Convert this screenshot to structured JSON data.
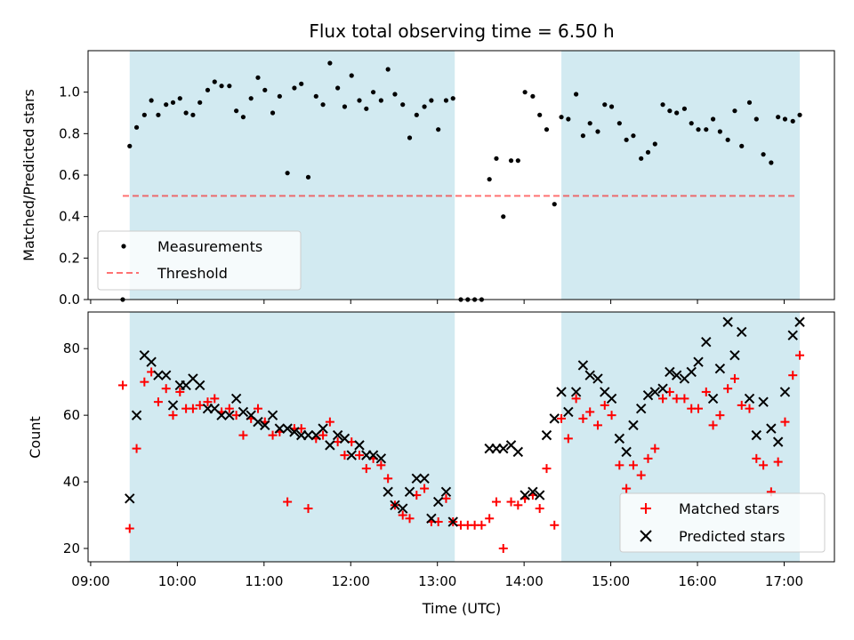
{
  "chart_data": {
    "type": "scatter",
    "title": "Flux total observing time = 6.50 h",
    "xlabel": "Time (UTC)",
    "x_unit": "hours UTC (decimal)",
    "x_ticks": [
      {
        "value": 9.0,
        "label": "09:00"
      },
      {
        "value": 10.0,
        "label": "10:00"
      },
      {
        "value": 11.0,
        "label": "11:00"
      },
      {
        "value": 12.0,
        "label": "12:00"
      },
      {
        "value": 13.0,
        "label": "13:00"
      },
      {
        "value": 14.0,
        "label": "14:00"
      },
      {
        "value": 15.0,
        "label": "15:00"
      },
      {
        "value": 16.0,
        "label": "16:00"
      },
      {
        "value": 17.0,
        "label": "17:00"
      }
    ],
    "xlim": [
      8.97,
      17.58
    ],
    "shaded_intervals": [
      [
        9.45,
        13.2
      ],
      [
        14.43,
        17.18
      ]
    ],
    "colors": {
      "shade": "#add8e6",
      "measurements": "#000000",
      "threshold": "#ff0000",
      "matched": "#ff0000",
      "predicted": "#000000"
    },
    "top_panel": {
      "ylabel": "Matched/Predicted stars",
      "ylim": [
        0.0,
        1.2
      ],
      "y_ticks": [
        0.0,
        0.2,
        0.4,
        0.6,
        0.8,
        1.0
      ],
      "y_tick_labels": [
        "0.0",
        "0.2",
        "0.4",
        "0.6",
        "0.8",
        "1.0"
      ],
      "threshold": {
        "value": 0.5,
        "x_range": [
          9.37,
          17.13
        ]
      },
      "legend": {
        "position": "lower-left",
        "entries": [
          "Measurements",
          "Threshold"
        ]
      },
      "measurements": [
        [
          9.37,
          0.0
        ],
        [
          9.45,
          0.74
        ],
        [
          9.53,
          0.83
        ],
        [
          9.62,
          0.89
        ],
        [
          9.7,
          0.96
        ],
        [
          9.78,
          0.89
        ],
        [
          9.87,
          0.94
        ],
        [
          9.95,
          0.95
        ],
        [
          10.03,
          0.97
        ],
        [
          10.1,
          0.9
        ],
        [
          10.18,
          0.89
        ],
        [
          10.26,
          0.95
        ],
        [
          10.35,
          1.01
        ],
        [
          10.43,
          1.05
        ],
        [
          10.51,
          1.03
        ],
        [
          10.6,
          1.03
        ],
        [
          10.68,
          0.91
        ],
        [
          10.76,
          0.88
        ],
        [
          10.85,
          0.97
        ],
        [
          10.93,
          1.07
        ],
        [
          11.01,
          1.01
        ],
        [
          11.1,
          0.9
        ],
        [
          11.18,
          0.98
        ],
        [
          11.27,
          0.61
        ],
        [
          11.35,
          1.02
        ],
        [
          11.43,
          1.04
        ],
        [
          11.51,
          0.59
        ],
        [
          11.6,
          0.98
        ],
        [
          11.68,
          0.94
        ],
        [
          11.76,
          1.14
        ],
        [
          11.85,
          1.02
        ],
        [
          11.93,
          0.93
        ],
        [
          12.01,
          1.08
        ],
        [
          12.1,
          0.96
        ],
        [
          12.18,
          0.92
        ],
        [
          12.26,
          1.0
        ],
        [
          12.35,
          0.96
        ],
        [
          12.43,
          1.11
        ],
        [
          12.51,
          0.99
        ],
        [
          12.6,
          0.94
        ],
        [
          12.68,
          0.78
        ],
        [
          12.76,
          0.89
        ],
        [
          12.85,
          0.93
        ],
        [
          12.93,
          0.96
        ],
        [
          13.01,
          0.82
        ],
        [
          13.1,
          0.96
        ],
        [
          13.18,
          0.97
        ],
        [
          13.27,
          0.0
        ],
        [
          13.35,
          0.0
        ],
        [
          13.43,
          0.0
        ],
        [
          13.51,
          0.0
        ],
        [
          13.6,
          0.58
        ],
        [
          13.68,
          0.68
        ],
        [
          13.76,
          0.4
        ],
        [
          13.85,
          0.67
        ],
        [
          13.93,
          0.67
        ],
        [
          14.01,
          1.0
        ],
        [
          14.1,
          0.98
        ],
        [
          14.18,
          0.89
        ],
        [
          14.26,
          0.82
        ],
        [
          14.35,
          0.46
        ],
        [
          14.43,
          0.88
        ],
        [
          14.51,
          0.87
        ],
        [
          14.6,
          0.99
        ],
        [
          14.68,
          0.79
        ],
        [
          14.76,
          0.85
        ],
        [
          14.85,
          0.81
        ],
        [
          14.93,
          0.94
        ],
        [
          15.01,
          0.93
        ],
        [
          15.1,
          0.85
        ],
        [
          15.18,
          0.77
        ],
        [
          15.26,
          0.79
        ],
        [
          15.35,
          0.68
        ],
        [
          15.43,
          0.71
        ],
        [
          15.51,
          0.75
        ],
        [
          15.6,
          0.94
        ],
        [
          15.68,
          0.91
        ],
        [
          15.76,
          0.9
        ],
        [
          15.85,
          0.92
        ],
        [
          15.93,
          0.85
        ],
        [
          16.01,
          0.82
        ],
        [
          16.1,
          0.82
        ],
        [
          16.18,
          0.87
        ],
        [
          16.26,
          0.81
        ],
        [
          16.35,
          0.77
        ],
        [
          16.43,
          0.91
        ],
        [
          16.51,
          0.74
        ],
        [
          16.6,
          0.95
        ],
        [
          16.68,
          0.87
        ],
        [
          16.76,
          0.7
        ],
        [
          16.85,
          0.66
        ],
        [
          16.93,
          0.88
        ],
        [
          17.01,
          0.87
        ],
        [
          17.1,
          0.86
        ],
        [
          17.18,
          0.89
        ]
      ]
    },
    "bottom_panel": {
      "ylabel": "Count",
      "ylim": [
        16,
        91
      ],
      "y_ticks": [
        20,
        40,
        60,
        80
      ],
      "y_tick_labels": [
        "20",
        "40",
        "60",
        "80"
      ],
      "legend": {
        "position": "lower-right",
        "entries": [
          "Matched stars",
          "Predicted stars"
        ]
      },
      "matched": [
        [
          9.37,
          69
        ],
        [
          9.45,
          26
        ],
        [
          9.53,
          50
        ],
        [
          9.62,
          70
        ],
        [
          9.7,
          73
        ],
        [
          9.78,
          64
        ],
        [
          9.87,
          68
        ],
        [
          9.95,
          60
        ],
        [
          10.03,
          67
        ],
        [
          10.1,
          62
        ],
        [
          10.18,
          62
        ],
        [
          10.26,
          63
        ],
        [
          10.35,
          64
        ],
        [
          10.43,
          65
        ],
        [
          10.51,
          61
        ],
        [
          10.6,
          62
        ],
        [
          10.68,
          60
        ],
        [
          10.76,
          54
        ],
        [
          10.85,
          59
        ],
        [
          10.93,
          62
        ],
        [
          11.01,
          58
        ],
        [
          11.1,
          54
        ],
        [
          11.18,
          55
        ],
        [
          11.27,
          34
        ],
        [
          11.35,
          56
        ],
        [
          11.43,
          56
        ],
        [
          11.51,
          32
        ],
        [
          11.6,
          53
        ],
        [
          11.68,
          54
        ],
        [
          11.76,
          58
        ],
        [
          11.85,
          52
        ],
        [
          11.93,
          48
        ],
        [
          12.01,
          52
        ],
        [
          12.1,
          48
        ],
        [
          12.18,
          44
        ],
        [
          12.26,
          47
        ],
        [
          12.35,
          45
        ],
        [
          12.43,
          41
        ],
        [
          12.51,
          33
        ],
        [
          12.6,
          30
        ],
        [
          12.68,
          29
        ],
        [
          12.76,
          36
        ],
        [
          12.85,
          38
        ],
        [
          12.93,
          28
        ],
        [
          13.01,
          28
        ],
        [
          13.1,
          35
        ],
        [
          13.18,
          28
        ],
        [
          13.27,
          27
        ],
        [
          13.35,
          27
        ],
        [
          13.43,
          27
        ],
        [
          13.51,
          27
        ],
        [
          13.6,
          29
        ],
        [
          13.68,
          34
        ],
        [
          13.76,
          20
        ],
        [
          13.85,
          34
        ],
        [
          13.93,
          33
        ],
        [
          14.01,
          35
        ],
        [
          14.1,
          36
        ],
        [
          14.18,
          32
        ],
        [
          14.26,
          44
        ],
        [
          14.35,
          27
        ],
        [
          14.43,
          59
        ],
        [
          14.51,
          53
        ],
        [
          14.6,
          65
        ],
        [
          14.68,
          59
        ],
        [
          14.76,
          61
        ],
        [
          14.85,
          57
        ],
        [
          14.93,
          63
        ],
        [
          15.01,
          60
        ],
        [
          15.1,
          45
        ],
        [
          15.18,
          38
        ],
        [
          15.26,
          45
        ],
        [
          15.35,
          42
        ],
        [
          15.43,
          47
        ],
        [
          15.51,
          50
        ],
        [
          15.6,
          65
        ],
        [
          15.68,
          67
        ],
        [
          15.76,
          65
        ],
        [
          15.85,
          65
        ],
        [
          15.93,
          62
        ],
        [
          16.01,
          62
        ],
        [
          16.1,
          67
        ],
        [
          16.18,
          57
        ],
        [
          16.26,
          60
        ],
        [
          16.35,
          68
        ],
        [
          16.43,
          71
        ],
        [
          16.51,
          63
        ],
        [
          16.6,
          62
        ],
        [
          16.68,
          47
        ],
        [
          16.76,
          45
        ],
        [
          16.85,
          37
        ],
        [
          16.93,
          46
        ],
        [
          17.01,
          58
        ],
        [
          17.1,
          72
        ],
        [
          17.18,
          78
        ]
      ],
      "predicted": [
        [
          9.45,
          35
        ],
        [
          9.53,
          60
        ],
        [
          9.62,
          78
        ],
        [
          9.7,
          76
        ],
        [
          9.78,
          72
        ],
        [
          9.87,
          72
        ],
        [
          9.95,
          63
        ],
        [
          10.03,
          69
        ],
        [
          10.1,
          69
        ],
        [
          10.18,
          71
        ],
        [
          10.26,
          69
        ],
        [
          10.35,
          62
        ],
        [
          10.43,
          62
        ],
        [
          10.51,
          60
        ],
        [
          10.6,
          60
        ],
        [
          10.68,
          65
        ],
        [
          10.76,
          61
        ],
        [
          10.85,
          60
        ],
        [
          10.93,
          58
        ],
        [
          11.01,
          57
        ],
        [
          11.1,
          60
        ],
        [
          11.18,
          56
        ],
        [
          11.27,
          56
        ],
        [
          11.35,
          55
        ],
        [
          11.43,
          54
        ],
        [
          11.51,
          54
        ],
        [
          11.6,
          54
        ],
        [
          11.68,
          56
        ],
        [
          11.76,
          51
        ],
        [
          11.85,
          54
        ],
        [
          11.93,
          53
        ],
        [
          12.01,
          48
        ],
        [
          12.1,
          51
        ],
        [
          12.18,
          48
        ],
        [
          12.26,
          48
        ],
        [
          12.35,
          47
        ],
        [
          12.43,
          37
        ],
        [
          12.51,
          33
        ],
        [
          12.6,
          32
        ],
        [
          12.68,
          37
        ],
        [
          12.76,
          41
        ],
        [
          12.85,
          41
        ],
        [
          12.93,
          29
        ],
        [
          13.01,
          34
        ],
        [
          13.1,
          37
        ],
        [
          13.18,
          28
        ],
        [
          13.6,
          50
        ],
        [
          13.68,
          50
        ],
        [
          13.76,
          50
        ],
        [
          13.85,
          51
        ],
        [
          13.93,
          49
        ],
        [
          14.01,
          36
        ],
        [
          14.1,
          37
        ],
        [
          14.18,
          36
        ],
        [
          14.26,
          54
        ],
        [
          14.35,
          59
        ],
        [
          14.43,
          67
        ],
        [
          14.51,
          61
        ],
        [
          14.6,
          67
        ],
        [
          14.68,
          75
        ],
        [
          14.76,
          72
        ],
        [
          14.85,
          71
        ],
        [
          14.93,
          67
        ],
        [
          15.01,
          65
        ],
        [
          15.1,
          53
        ],
        [
          15.18,
          49
        ],
        [
          15.26,
          57
        ],
        [
          15.35,
          62
        ],
        [
          15.43,
          66
        ],
        [
          15.51,
          67
        ],
        [
          15.6,
          68
        ],
        [
          15.68,
          73
        ],
        [
          15.76,
          72
        ],
        [
          15.85,
          71
        ],
        [
          15.93,
          73
        ],
        [
          16.01,
          76
        ],
        [
          16.1,
          82
        ],
        [
          16.18,
          65
        ],
        [
          16.26,
          74
        ],
        [
          16.35,
          88
        ],
        [
          16.43,
          78
        ],
        [
          16.51,
          85
        ],
        [
          16.6,
          65
        ],
        [
          16.68,
          54
        ],
        [
          16.76,
          64
        ],
        [
          16.85,
          56
        ],
        [
          16.93,
          52
        ],
        [
          17.01,
          67
        ],
        [
          17.1,
          84
        ],
        [
          17.18,
          88
        ]
      ]
    }
  }
}
